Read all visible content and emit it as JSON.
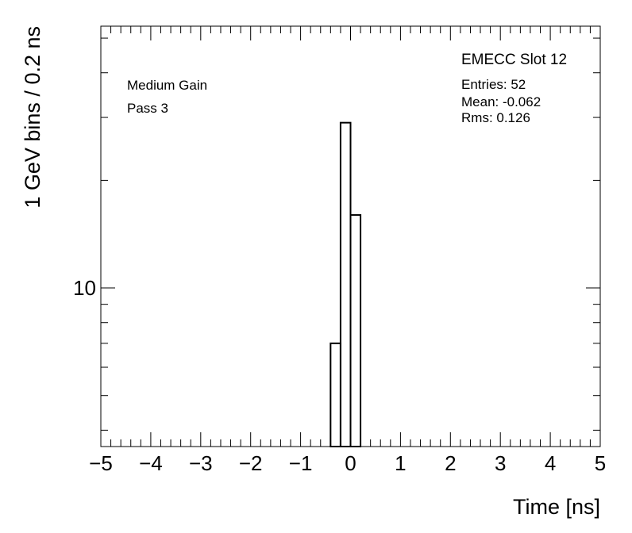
{
  "chart_data": {
    "type": "histogram",
    "title": "EMECC Slot 12",
    "annotations": [
      "Medium Gain",
      "Pass 3"
    ],
    "stats": [
      "Entries: 52",
      "Mean: -0.062",
      "Rms: 0.126"
    ],
    "x_label": "Time [ns]",
    "y_label": "1 GeV bins / 0.2 ns",
    "bins": [
      -0.4,
      -0.2,
      0,
      0.2
    ],
    "values": [
      7,
      29,
      16
    ],
    "color": "#000000",
    "xlim": [
      -5,
      5
    ],
    "xticks": [
      {
        "value": -5,
        "label": "−5"
      },
      {
        "value": -4,
        "label": "−4"
      },
      {
        "value": -3,
        "label": "−3"
      },
      {
        "value": -2,
        "label": "−2"
      },
      {
        "value": -1,
        "label": "−1"
      },
      0,
      1,
      2,
      3,
      4,
      5
    ],
    "ylim": [
      3.6,
      54
    ],
    "log_y": true,
    "yticks": [
      10
    ],
    "y_minor_ticks": [
      4,
      5,
      6,
      7,
      8,
      9,
      20,
      30,
      40,
      50
    ]
  }
}
